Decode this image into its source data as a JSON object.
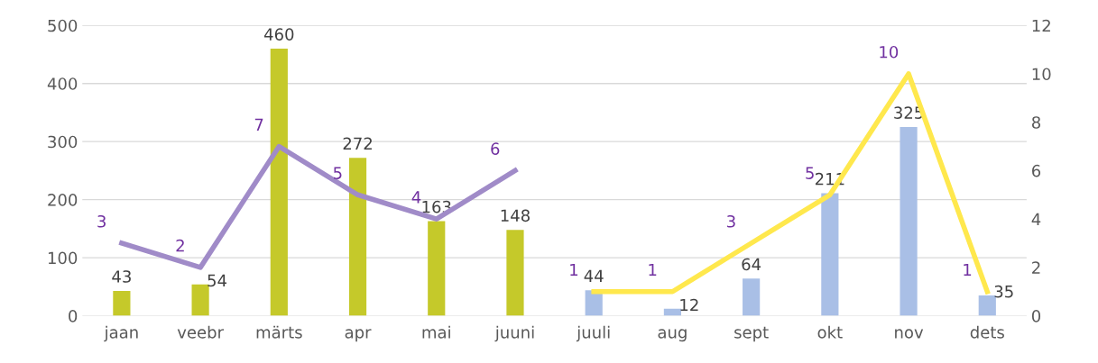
{
  "chart_data": {
    "type": "bar",
    "categories": [
      "jaan",
      "veebr",
      "märts",
      "apr",
      "mai",
      "juuni",
      "juuli",
      "aug",
      "sept",
      "okt",
      "nov",
      "dets"
    ],
    "series": [
      {
        "color": "#c5c92a",
        "values": [
          43,
          54,
          460,
          272,
          163,
          148,
          null,
          null,
          null,
          null,
          null,
          null
        ]
      },
      {
        "color": "#a9bfe6",
        "values": [
          null,
          null,
          null,
          null,
          null,
          null,
          44,
          12,
          64,
          211,
          325,
          35
        ]
      },
      {
        "type": "line",
        "axis": "y2",
        "color": "#a08bc8",
        "values": [
          3,
          2,
          7,
          5,
          4,
          6,
          null,
          null,
          null,
          null,
          null,
          null
        ]
      },
      {
        "type": "line",
        "axis": "y2",
        "color": "#ffe84d",
        "values": [
          null,
          null,
          null,
          null,
          null,
          null,
          1,
          1,
          3,
          5,
          10,
          1
        ]
      }
    ],
    "ylim": [
      0,
      500
    ],
    "yticks": [
      0,
      100,
      200,
      300,
      400,
      500
    ],
    "y2lim": [
      0,
      12
    ],
    "y2ticks": [
      0,
      2,
      4,
      6,
      8,
      10,
      12
    ],
    "grid": "y",
    "data_labels": true,
    "marker": "none",
    "line_style": "solid"
  }
}
